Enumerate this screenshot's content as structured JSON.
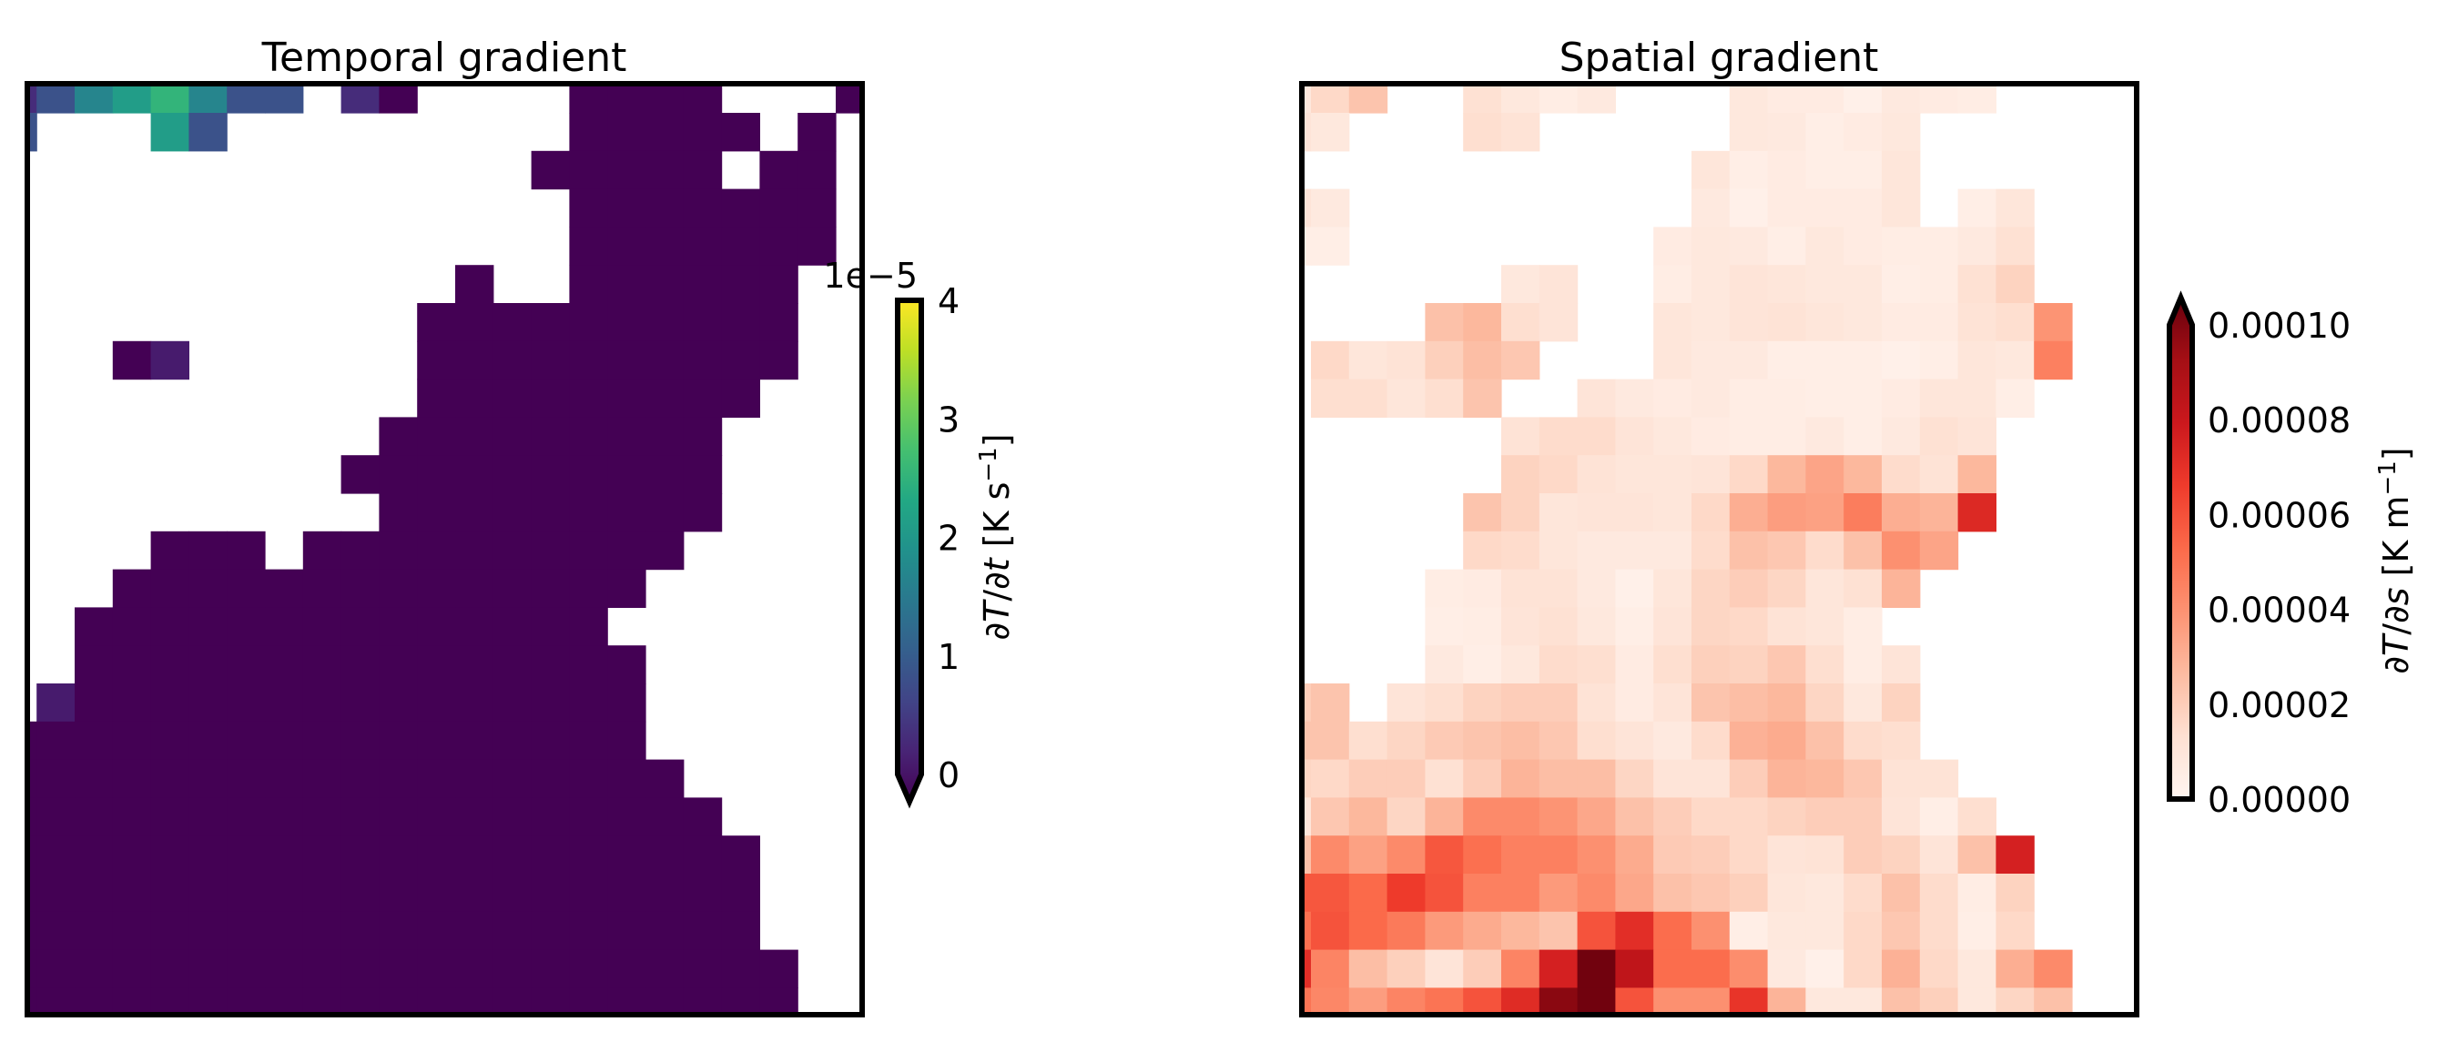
{
  "chart_data": [
    {
      "type": "heatmap",
      "title": "Temporal gradient",
      "colormap": "viridis",
      "value_scale": 1e-05,
      "vmin": 0,
      "vmax": 4,
      "extend": "min",
      "nan_color": "#ffffff",
      "colorbar": {
        "offset_text": "1e−5",
        "ticks": [
          0,
          1,
          2,
          3,
          4
        ],
        "tick_labels": [
          "0",
          "1",
          "2",
          "3",
          "4"
        ],
        "label": {
          "d1": "∂",
          "v1": "T",
          "d2": "/∂",
          "v2": "t",
          "units": " [K s",
          "exp": "−1",
          "close": "]"
        }
      },
      "grid": [
        [
          0.5,
          1.0,
          1.8,
          2.2,
          2.6,
          1.8,
          1.0,
          1.0,
          null,
          0.5,
          0,
          null,
          null,
          null,
          null,
          0,
          0,
          0,
          0,
          null,
          null,
          null,
          0
        ],
        [
          1.0,
          null,
          null,
          null,
          2.2,
          1.0,
          null,
          null,
          null,
          null,
          null,
          null,
          null,
          null,
          null,
          0,
          0,
          0,
          0,
          0,
          null,
          0,
          null
        ],
        [
          null,
          null,
          null,
          null,
          null,
          null,
          null,
          null,
          null,
          null,
          null,
          null,
          null,
          null,
          0,
          0,
          0,
          0,
          0,
          null,
          0,
          0,
          null
        ],
        [
          null,
          null,
          null,
          null,
          null,
          null,
          null,
          null,
          null,
          null,
          null,
          null,
          null,
          null,
          null,
          0,
          0,
          0,
          0,
          0,
          0,
          0,
          null
        ],
        [
          null,
          null,
          null,
          null,
          null,
          null,
          null,
          null,
          null,
          null,
          null,
          null,
          null,
          null,
          null,
          0,
          0,
          0,
          0,
          0,
          0,
          0,
          null
        ],
        [
          null,
          null,
          null,
          null,
          null,
          null,
          null,
          null,
          null,
          null,
          null,
          null,
          0,
          null,
          null,
          0,
          0,
          0,
          0,
          0,
          0,
          null,
          null
        ],
        [
          null,
          null,
          null,
          null,
          null,
          null,
          null,
          null,
          null,
          null,
          null,
          0,
          0,
          0,
          0,
          0,
          0,
          0,
          0,
          0,
          0,
          null,
          null
        ],
        [
          null,
          null,
          null,
          0,
          0.3,
          null,
          null,
          null,
          null,
          null,
          null,
          0,
          0,
          0,
          0,
          0,
          0,
          0,
          0,
          0,
          0,
          null,
          null
        ],
        [
          null,
          null,
          null,
          null,
          null,
          null,
          null,
          null,
          null,
          null,
          null,
          0,
          0,
          0,
          0,
          0,
          0,
          0,
          0,
          0,
          null,
          null,
          null
        ],
        [
          null,
          null,
          null,
          null,
          null,
          null,
          null,
          null,
          null,
          null,
          0,
          0,
          0,
          0,
          0,
          0,
          0,
          0,
          0,
          null,
          null,
          null,
          null
        ],
        [
          null,
          null,
          null,
          null,
          null,
          null,
          null,
          null,
          null,
          0,
          0,
          0,
          0,
          0,
          0,
          0,
          0,
          0,
          0,
          null,
          null,
          null,
          null
        ],
        [
          null,
          null,
          null,
          null,
          null,
          null,
          null,
          null,
          null,
          null,
          0,
          0,
          0,
          0,
          0,
          0,
          0,
          0,
          0,
          null,
          null,
          null,
          null
        ],
        [
          null,
          null,
          null,
          null,
          0,
          0,
          0,
          null,
          0,
          0,
          0,
          0,
          0,
          0,
          0,
          0,
          0,
          0,
          null,
          null,
          null,
          null,
          null
        ],
        [
          null,
          null,
          null,
          0,
          0,
          0,
          0,
          0,
          0,
          0,
          0,
          0,
          0,
          0,
          0,
          0,
          0,
          null,
          null,
          null,
          null,
          null,
          null
        ],
        [
          null,
          null,
          0,
          0,
          0,
          0,
          0,
          0,
          0,
          0,
          0,
          0,
          0,
          0,
          0,
          0,
          null,
          null,
          null,
          null,
          null,
          null,
          null
        ],
        [
          null,
          null,
          0,
          0,
          0,
          0,
          0,
          0,
          0,
          0,
          0,
          0,
          0,
          0,
          0,
          0,
          0,
          null,
          null,
          null,
          null,
          null,
          null
        ],
        [
          null,
          0.3,
          0,
          0,
          0,
          0,
          0,
          0,
          0,
          0,
          0,
          0,
          0,
          0,
          0,
          0,
          0,
          null,
          null,
          null,
          null,
          null,
          null
        ],
        [
          0,
          0,
          0,
          0,
          0,
          0,
          0,
          0,
          0,
          0,
          0,
          0,
          0,
          0,
          0,
          0,
          0,
          null,
          null,
          null,
          null,
          null,
          null
        ],
        [
          0,
          0,
          0,
          0,
          0,
          0,
          0,
          0,
          0,
          0,
          0,
          0,
          0,
          0,
          0,
          0,
          0,
          0,
          null,
          null,
          null,
          null,
          null
        ],
        [
          0,
          0,
          0,
          0,
          0,
          0,
          0,
          0,
          0,
          0,
          0,
          0,
          0,
          0,
          0,
          0,
          0,
          0,
          0,
          null,
          null,
          null,
          null
        ],
        [
          0,
          0,
          0,
          0,
          0,
          0,
          0,
          0,
          0,
          0,
          0,
          0,
          0,
          0,
          0,
          0,
          0,
          0,
          0,
          0,
          null,
          null,
          null
        ],
        [
          0,
          0,
          0,
          0,
          0,
          0,
          0,
          0,
          0,
          0,
          0,
          0,
          0,
          0,
          0,
          0,
          0,
          0,
          0,
          0,
          null,
          null,
          null
        ],
        [
          0,
          0,
          0,
          0,
          0,
          0,
          0,
          0,
          0,
          0,
          0,
          0,
          0,
          0,
          0,
          0,
          0,
          0,
          0,
          0,
          null,
          null,
          null
        ],
        [
          0,
          0,
          0,
          0,
          0,
          0,
          0,
          0,
          0,
          0,
          0,
          0,
          0,
          0,
          0,
          0,
          0,
          0,
          0,
          0,
          0,
          null,
          null
        ],
        [
          0,
          0,
          0,
          0,
          0,
          0,
          0,
          0,
          0,
          0,
          0,
          0,
          0,
          0,
          0,
          0,
          0,
          0,
          0,
          0,
          0,
          null,
          null
        ]
      ]
    },
    {
      "type": "heatmap",
      "title": "Spatial gradient",
      "colormap": "Reds",
      "value_scale": 1e-05,
      "vmin": 0,
      "vmax": 10,
      "extend": "max",
      "nan_color": "#ffffff",
      "colorbar": {
        "ticks": [
          0,
          2,
          4,
          6,
          8,
          10
        ],
        "tick_labels": [
          "0.00000",
          "0.00002",
          "0.00004",
          "0.00006",
          "0.00008",
          "0.00010"
        ],
        "label": {
          "d1": "∂",
          "v1": "T",
          "d2": "/∂",
          "v2": "s",
          "units": " [K m",
          "exp": "−1",
          "close": "]"
        }
      },
      "grid": [
        [
          0.8,
          1.5,
          2.2,
          null,
          null,
          1.2,
          0.8,
          0.5,
          0.7,
          null,
          null,
          null,
          0.8,
          0.6,
          0.6,
          0.3,
          0.7,
          0.6,
          0.5,
          null,
          null,
          null,
          null
        ],
        [
          1.0,
          0.8,
          null,
          null,
          null,
          1.3,
          1.1,
          null,
          null,
          null,
          null,
          null,
          0.8,
          0.7,
          0.4,
          0.6,
          0.8,
          null,
          null,
          null,
          null,
          null,
          null
        ],
        [
          null,
          null,
          null,
          null,
          null,
          null,
          null,
          null,
          null,
          null,
          null,
          0.9,
          0.4,
          0.6,
          0.4,
          0.4,
          0.9,
          null,
          null,
          null,
          null,
          null,
          null
        ],
        [
          1.0,
          0.7,
          null,
          null,
          null,
          null,
          null,
          null,
          null,
          null,
          null,
          0.7,
          0.3,
          0.6,
          0.6,
          0.6,
          0.9,
          null,
          0.4,
          0.9,
          null,
          null,
          null
        ],
        [
          0.4,
          0.4,
          null,
          null,
          null,
          null,
          null,
          null,
          null,
          null,
          0.6,
          0.8,
          0.7,
          0.4,
          0.8,
          0.6,
          0.5,
          0.5,
          0.7,
          1.2,
          null,
          null,
          null
        ],
        [
          null,
          null,
          null,
          null,
          null,
          null,
          0.8,
          1.0,
          null,
          null,
          0.5,
          0.8,
          1.0,
          0.9,
          0.8,
          0.8,
          0.4,
          0.5,
          1.2,
          1.7,
          null,
          null,
          null
        ],
        [
          null,
          null,
          null,
          null,
          2.3,
          2.6,
          1.3,
          1.0,
          null,
          null,
          0.9,
          0.8,
          1.0,
          1.1,
          0.9,
          0.8,
          0.6,
          0.6,
          1.1,
          1.3,
          3.7,
          null,
          null
        ],
        [
          null,
          1.5,
          0.9,
          1.1,
          1.8,
          2.4,
          2.1,
          null,
          null,
          null,
          0.9,
          0.7,
          0.7,
          0.4,
          0.4,
          0.4,
          0.3,
          0.4,
          0.9,
          0.8,
          4.3,
          null,
          null
        ],
        [
          null,
          1.3,
          1.3,
          0.9,
          1.3,
          2.2,
          null,
          null,
          1.0,
          0.7,
          0.6,
          0.7,
          0.5,
          0.5,
          0.4,
          0.4,
          0.6,
          0.9,
          0.9,
          0.4,
          null,
          null,
          null
        ],
        [
          null,
          null,
          null,
          null,
          null,
          null,
          1.1,
          1.4,
          1.4,
          1.0,
          0.8,
          0.6,
          0.5,
          0.5,
          0.7,
          0.4,
          0.7,
          1.2,
          1.0,
          null,
          null,
          null,
          null
        ],
        [
          null,
          null,
          null,
          null,
          null,
          null,
          1.7,
          1.5,
          1.1,
          0.9,
          0.9,
          1.0,
          1.5,
          2.6,
          3.2,
          2.6,
          1.4,
          1.1,
          2.6,
          null,
          null,
          null,
          null
        ],
        [
          null,
          null,
          null,
          null,
          null,
          2.2,
          1.7,
          0.9,
          1.0,
          1.0,
          0.9,
          1.5,
          2.9,
          3.4,
          3.3,
          4.4,
          2.9,
          2.7,
          6.9,
          null,
          null,
          null,
          null
        ],
        [
          null,
          null,
          null,
          null,
          null,
          1.5,
          1.4,
          0.9,
          0.7,
          0.7,
          0.7,
          1.4,
          2.3,
          2.1,
          1.4,
          2.3,
          3.8,
          3.2,
          null,
          null,
          null,
          null,
          null
        ],
        [
          null,
          null,
          null,
          null,
          0.5,
          0.6,
          1.1,
          1.1,
          0.7,
          0.3,
          0.9,
          1.6,
          1.9,
          1.6,
          0.9,
          1.2,
          2.7,
          null,
          null,
          null,
          null,
          null,
          null
        ],
        [
          null,
          null,
          null,
          null,
          0.4,
          0.5,
          1.0,
          1.2,
          0.8,
          0.4,
          1.0,
          1.6,
          1.5,
          1.1,
          0.9,
          0.5,
          null,
          null,
          null,
          null,
          null,
          null,
          null
        ],
        [
          null,
          null,
          null,
          null,
          0.7,
          0.4,
          0.8,
          1.4,
          1.3,
          0.6,
          1.3,
          1.8,
          1.7,
          2.1,
          1.3,
          0.5,
          1.0,
          null,
          null,
          null,
          null,
          null,
          null
        ],
        [
          1.9,
          2.2,
          null,
          1.0,
          1.3,
          1.7,
          1.9,
          1.9,
          1.1,
          0.6,
          1.0,
          2.2,
          2.4,
          2.6,
          1.6,
          0.8,
          1.7,
          null,
          null,
          null,
          null,
          null,
          null
        ],
        [
          2.2,
          2.2,
          1.3,
          1.6,
          2.0,
          2.2,
          2.4,
          2.1,
          1.3,
          1.0,
          0.7,
          1.4,
          2.8,
          3.0,
          2.3,
          1.4,
          1.3,
          null,
          null,
          null,
          null,
          null,
          null
        ],
        [
          1.6,
          1.5,
          1.9,
          1.9,
          1.2,
          1.9,
          2.7,
          2.4,
          2.4,
          1.6,
          1.0,
          1.0,
          1.9,
          2.7,
          2.6,
          2.1,
          1.1,
          1.1,
          null,
          null,
          null,
          null,
          null
        ],
        [
          0.9,
          2.1,
          2.6,
          1.6,
          2.7,
          4.0,
          4.0,
          3.7,
          3.1,
          2.3,
          1.9,
          1.5,
          1.5,
          1.7,
          1.9,
          1.9,
          1.0,
          0.4,
          1.3,
          null,
          null,
          null,
          null
        ],
        [
          2.3,
          4.0,
          3.3,
          4.0,
          5.5,
          4.8,
          4.3,
          4.3,
          3.8,
          3.0,
          2.0,
          1.9,
          1.5,
          1.0,
          1.1,
          1.9,
          1.7,
          1.0,
          2.3,
          7.2,
          null,
          null,
          null
        ],
        [
          5.5,
          5.5,
          5.0,
          6.3,
          5.6,
          4.3,
          4.3,
          3.5,
          4.0,
          3.1,
          2.3,
          2.1,
          1.8,
          0.9,
          0.8,
          1.4,
          2.3,
          1.4,
          0.5,
          1.7,
          null,
          null,
          null
        ],
        [
          4.8,
          5.6,
          5.0,
          4.5,
          3.5,
          3.0,
          2.6,
          2.2,
          5.6,
          6.7,
          4.9,
          3.8,
          0.4,
          0.8,
          0.8,
          1.5,
          2.1,
          1.4,
          0.4,
          1.5,
          null,
          null,
          null
        ],
        [
          6.7,
          4.2,
          2.4,
          1.8,
          1.0,
          1.9,
          4.2,
          7.2,
          9.8,
          7.9,
          4.9,
          4.9,
          3.9,
          0.7,
          0.3,
          1.5,
          2.8,
          1.5,
          0.8,
          2.9,
          4.0,
          null,
          null
        ],
        [
          4.7,
          4.1,
          3.4,
          4.2,
          4.7,
          5.6,
          6.8,
          9.3,
          9.8,
          5.6,
          3.8,
          3.8,
          6.5,
          2.7,
          0.8,
          0.8,
          2.3,
          1.8,
          0.8,
          1.6,
          2.3,
          null,
          null
        ]
      ]
    }
  ],
  "colormaps": {
    "viridis": [
      "#440154",
      "#482475",
      "#414487",
      "#355f8d",
      "#2a788e",
      "#21918c",
      "#22a884",
      "#44bf70",
      "#7ad151",
      "#bddf26",
      "#fde725"
    ],
    "Reds": [
      "#fff5f0",
      "#fee0d2",
      "#fcbba1",
      "#fc9272",
      "#fb6a4a",
      "#ef3b2c",
      "#cb181d",
      "#a50f15",
      "#67000d"
    ]
  }
}
